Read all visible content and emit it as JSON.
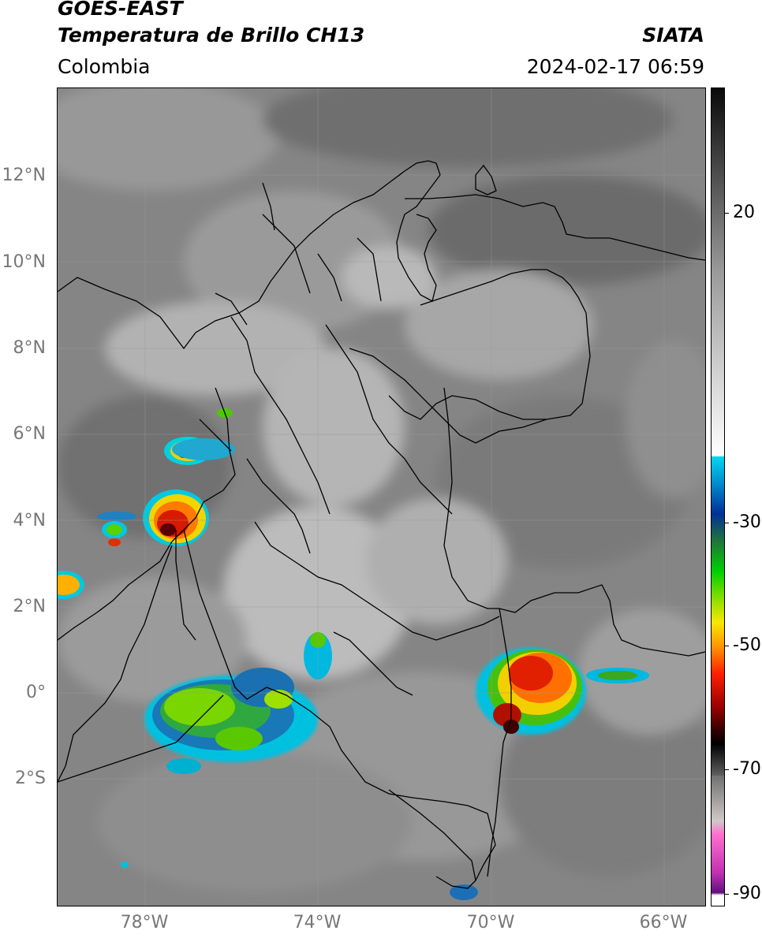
{
  "header": {
    "line1": "GOES-EAST",
    "line2": "Temperatura de Brillo CH13",
    "source": "SIATA",
    "region": "Colombia",
    "timestamp": "2024-02-17 06:59"
  },
  "map": {
    "lat_labels": [
      "12°N",
      "10°N",
      "8°N",
      "6°N",
      "4°N",
      "2°N",
      "0°",
      "2°S"
    ],
    "lon_labels": [
      "78°W",
      "74°W",
      "70°W",
      "66°W"
    ]
  },
  "colorbar": {
    "labels": [
      "20",
      "-30",
      "-50",
      "-70",
      "-90"
    ]
  }
}
